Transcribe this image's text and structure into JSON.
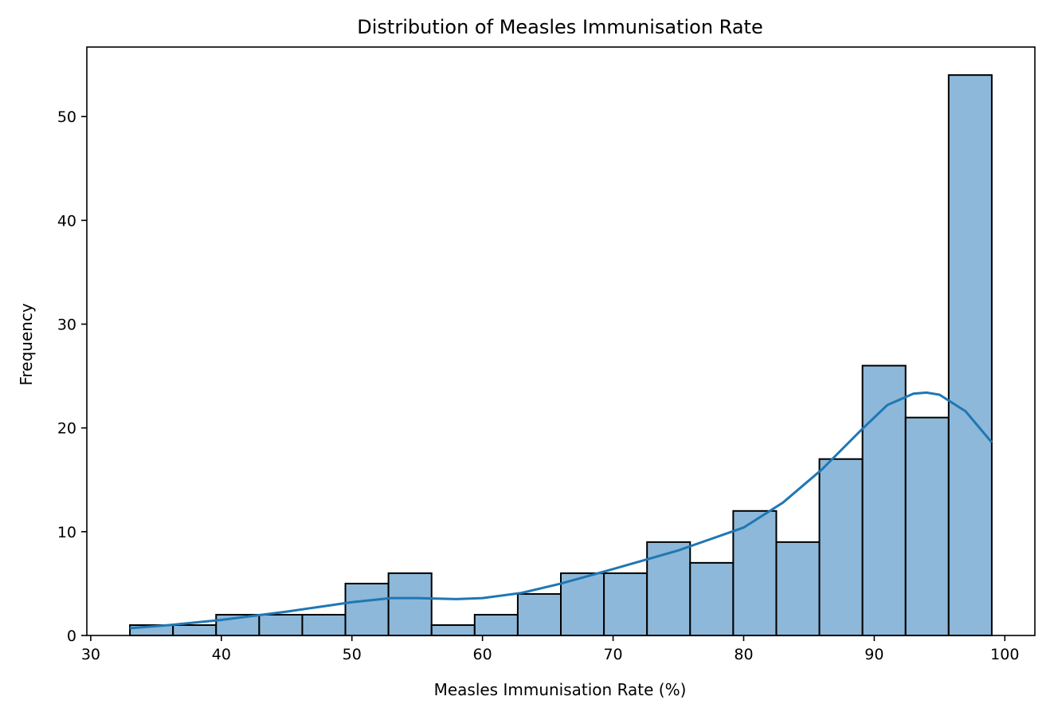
{
  "chart_data": {
    "type": "bar",
    "subtype": "histogram_with_kde",
    "title": "Distribution of Measles Immunisation Rate",
    "xlabel": "Measles Immunisation Rate (%)",
    "ylabel": "Frequency",
    "xlim": [
      29.7,
      102.3
    ],
    "ylim": [
      0,
      56.7
    ],
    "xticks": [
      30,
      40,
      50,
      60,
      70,
      80,
      90,
      100
    ],
    "yticks": [
      0,
      10,
      20,
      30,
      40,
      50
    ],
    "grid": false,
    "legend": "none",
    "colors": {
      "bar_fill": "#8db8d9",
      "bar_edge": "#000000",
      "kde_line": "#1f77b4"
    },
    "bins": [
      {
        "x0": 33.0,
        "x1": 36.3,
        "count": 1
      },
      {
        "x0": 36.3,
        "x1": 39.6,
        "count": 1
      },
      {
        "x0": 39.6,
        "x1": 42.9,
        "count": 2
      },
      {
        "x0": 42.9,
        "x1": 46.2,
        "count": 2
      },
      {
        "x0": 46.2,
        "x1": 49.5,
        "count": 2
      },
      {
        "x0": 49.5,
        "x1": 52.8,
        "count": 5
      },
      {
        "x0": 52.8,
        "x1": 56.1,
        "count": 6
      },
      {
        "x0": 56.1,
        "x1": 59.4,
        "count": 1
      },
      {
        "x0": 59.4,
        "x1": 62.7,
        "count": 2
      },
      {
        "x0": 62.7,
        "x1": 66.0,
        "count": 4
      },
      {
        "x0": 66.0,
        "x1": 69.3,
        "count": 6
      },
      {
        "x0": 69.3,
        "x1": 72.6,
        "count": 6
      },
      {
        "x0": 72.6,
        "x1": 75.9,
        "count": 9
      },
      {
        "x0": 75.9,
        "x1": 79.2,
        "count": 7
      },
      {
        "x0": 79.2,
        "x1": 82.5,
        "count": 12
      },
      {
        "x0": 82.5,
        "x1": 85.8,
        "count": 9
      },
      {
        "x0": 85.8,
        "x1": 89.1,
        "count": 17
      },
      {
        "x0": 89.1,
        "x1": 92.4,
        "count": 26
      },
      {
        "x0": 92.4,
        "x1": 95.7,
        "count": 21
      },
      {
        "x0": 95.7,
        "x1": 99.0,
        "count": 54
      }
    ],
    "kde": {
      "x": [
        33,
        36,
        40,
        45,
        50,
        53,
        55,
        58,
        60,
        63,
        66,
        70,
        75,
        80,
        83,
        86,
        89,
        91,
        93,
        94,
        95,
        97,
        99
      ],
      "y": [
        0.7,
        1.0,
        1.5,
        2.3,
        3.2,
        3.6,
        3.6,
        3.5,
        3.6,
        4.1,
        5.0,
        6.4,
        8.2,
        10.4,
        12.8,
        16.0,
        19.8,
        22.2,
        23.3,
        23.4,
        23.2,
        21.6,
        18.6
      ]
    }
  }
}
